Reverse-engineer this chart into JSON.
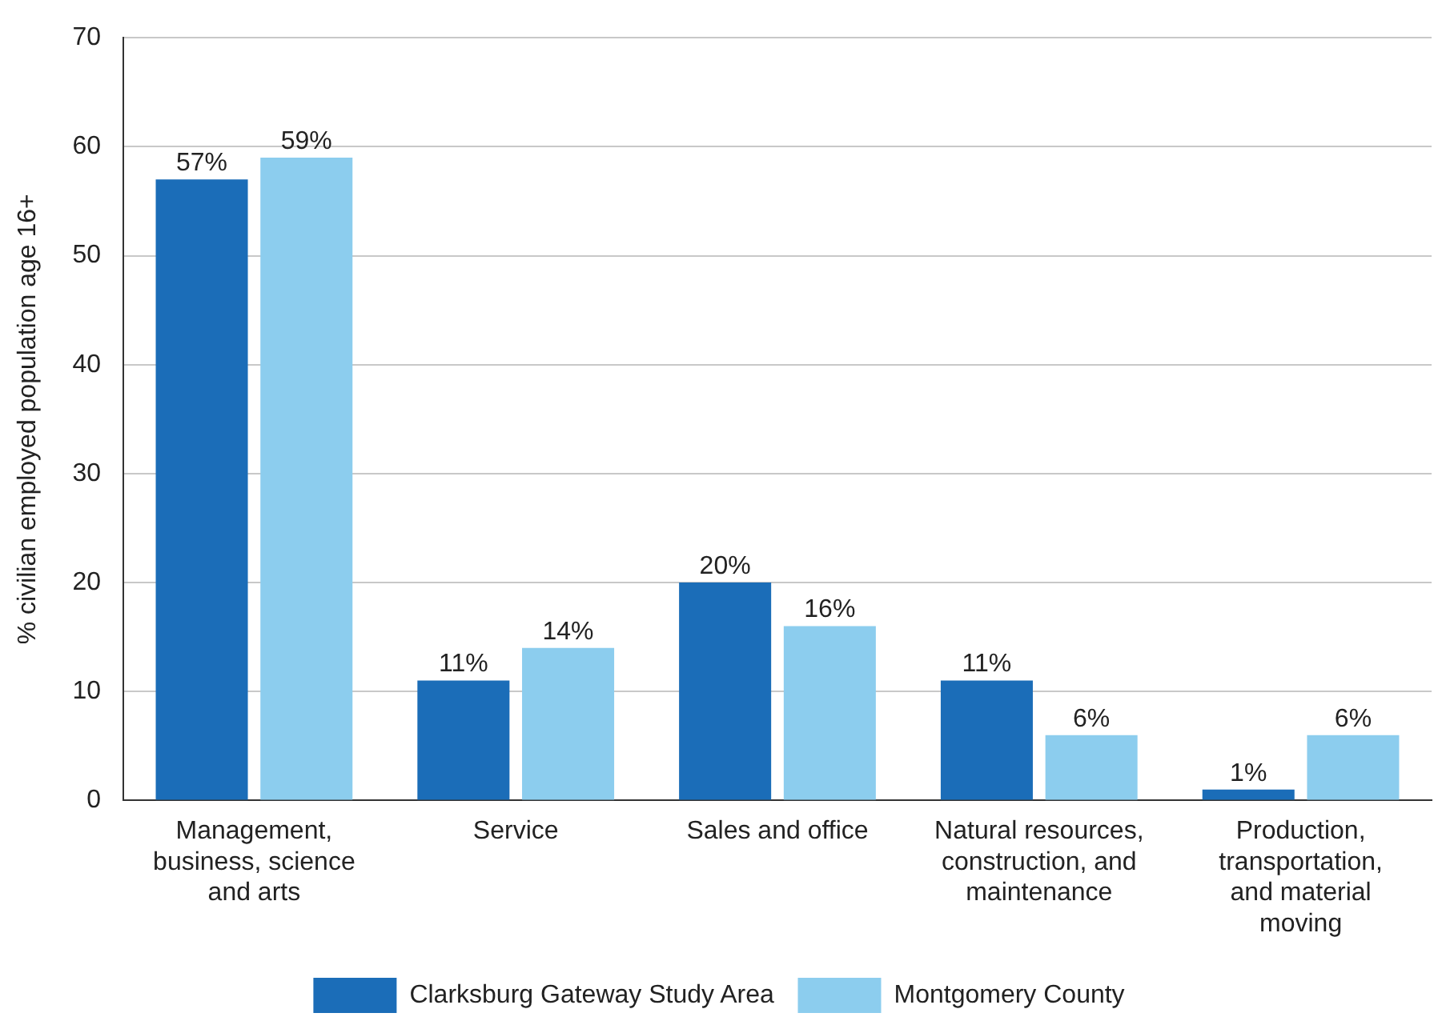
{
  "chart_data": {
    "type": "bar",
    "ylabel": "% civilian employed population age 16+",
    "categories": [
      "Management, business, science and arts",
      "Service",
      "Sales and office",
      "Natural resources, construction, and maintenance",
      "Production, transportation, and material moving"
    ],
    "series": [
      {
        "name": "Clarksburg Gateway Study Area",
        "color": "#1b6db8",
        "values": [
          57,
          11,
          20,
          11,
          1
        ],
        "value_labels": [
          "57%",
          "11%",
          "20%",
          "11%",
          "1%"
        ]
      },
      {
        "name": "Montgomery County",
        "color": "#8ccdee",
        "values": [
          59,
          14,
          16,
          6,
          6
        ],
        "value_labels": [
          "59%",
          "14%",
          "16%",
          "6%",
          "6%"
        ]
      }
    ],
    "ylim": [
      0,
      70
    ],
    "yticks": [
      0,
      10,
      20,
      30,
      40,
      50,
      60,
      70
    ],
    "grid": "y",
    "legend": "bottom"
  }
}
